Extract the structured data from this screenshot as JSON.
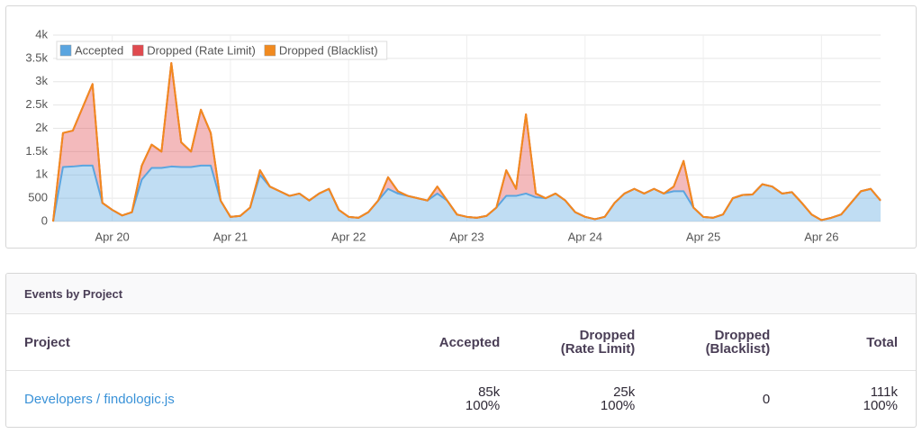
{
  "chart_data": {
    "type": "stacked-area",
    "categories": [
      null,
      null,
      null,
      null,
      null,
      null,
      "Apr 20",
      null,
      null,
      null,
      null,
      null,
      null,
      null,
      null,
      null,
      null,
      null,
      "Apr 21",
      null,
      null,
      null,
      null,
      null,
      null,
      null,
      null,
      null,
      null,
      null,
      "Apr 22",
      null,
      null,
      null,
      null,
      null,
      null,
      null,
      null,
      null,
      null,
      null,
      "Apr 23",
      null,
      null,
      null,
      null,
      null,
      null,
      null,
      null,
      null,
      null,
      null,
      "Apr 24",
      null,
      null,
      null,
      null,
      null,
      null,
      null,
      null,
      null,
      null,
      null,
      "Apr 25",
      null,
      null,
      null,
      null,
      null,
      null,
      null,
      null,
      null,
      null,
      null,
      "Apr 26",
      null,
      null,
      null,
      null,
      null,
      null
    ],
    "series": [
      {
        "name": "Accepted",
        "color": "#5aa5e0",
        "values": [
          0,
          1170,
          1180,
          1200,
          1200,
          400,
          250,
          130,
          200,
          900,
          1150,
          1150,
          1180,
          1170,
          1170,
          1200,
          1200,
          450,
          100,
          120,
          300,
          1000,
          750,
          650,
          550,
          600,
          450,
          600,
          700,
          250,
          100,
          80,
          200,
          450,
          700,
          600,
          550,
          500,
          450,
          600,
          450,
          150,
          100,
          80,
          120,
          300,
          550,
          550,
          600,
          520,
          500,
          600,
          450,
          200,
          100,
          50,
          100,
          400,
          600,
          700,
          600,
          700,
          600,
          650,
          650,
          300,
          100,
          80,
          150,
          500,
          570,
          580,
          800,
          750,
          600,
          630,
          400,
          150,
          30,
          80,
          150,
          400,
          650,
          700,
          450
        ]
      },
      {
        "name": "Dropped (Rate Limit)",
        "color": "#e04a4f",
        "values": [
          0,
          730,
          770,
          1250,
          1750,
          0,
          0,
          0,
          0,
          300,
          500,
          350,
          2220,
          530,
          330,
          1200,
          700,
          0,
          0,
          0,
          0,
          100,
          0,
          0,
          0,
          0,
          0,
          0,
          0,
          0,
          0,
          0,
          0,
          0,
          250,
          50,
          0,
          0,
          0,
          150,
          0,
          0,
          0,
          0,
          0,
          0,
          550,
          150,
          1700,
          80,
          0,
          0,
          0,
          0,
          0,
          0,
          0,
          0,
          0,
          0,
          0,
          0,
          0,
          100,
          650,
          0,
          0,
          0,
          0,
          0,
          0,
          0,
          0,
          0,
          0,
          0,
          0,
          0,
          0,
          0,
          0,
          0,
          0,
          0,
          0
        ]
      },
      {
        "name": "Dropped (Blacklist)",
        "color": "#f18a1f",
        "values": [
          0,
          0,
          0,
          0,
          0,
          0,
          0,
          0,
          0,
          0,
          0,
          0,
          0,
          0,
          0,
          0,
          0,
          0,
          0,
          0,
          0,
          0,
          0,
          0,
          0,
          0,
          0,
          0,
          0,
          0,
          0,
          0,
          0,
          0,
          0,
          0,
          0,
          0,
          0,
          0,
          0,
          0,
          0,
          0,
          0,
          0,
          0,
          0,
          0,
          0,
          0,
          0,
          0,
          0,
          0,
          0,
          0,
          0,
          0,
          0,
          0,
          0,
          0,
          0,
          0,
          0,
          0,
          0,
          0,
          0,
          0,
          0,
          0,
          0,
          0,
          0,
          0,
          0,
          0,
          0,
          0,
          0,
          0,
          0,
          0
        ]
      }
    ],
    "ylim": [
      0,
      4000
    ],
    "yticks": [
      0,
      500,
      {
        "value": 1000,
        "label": "1k"
      },
      {
        "value": 1500,
        "label": "1.5k"
      },
      {
        "value": 2000,
        "label": "2k"
      },
      {
        "value": 2500,
        "label": "2.5k"
      },
      {
        "value": 3000,
        "label": "3k"
      },
      {
        "value": 3500,
        "label": "3.5k"
      },
      {
        "value": 4000,
        "label": "4k"
      }
    ],
    "grid": true,
    "legend": "top-left"
  },
  "table": {
    "title": "Events by Project",
    "columns": [
      "Project",
      "Accepted",
      "Dropped (Rate Limit)",
      "Dropped (Blacklist)",
      "Total"
    ],
    "rows": [
      [
        [
          "Developers / findologic.js"
        ],
        [
          "85k",
          "100%"
        ],
        [
          "25k",
          "100%"
        ],
        [
          "0"
        ],
        [
          "111k",
          "100%"
        ]
      ]
    ]
  }
}
